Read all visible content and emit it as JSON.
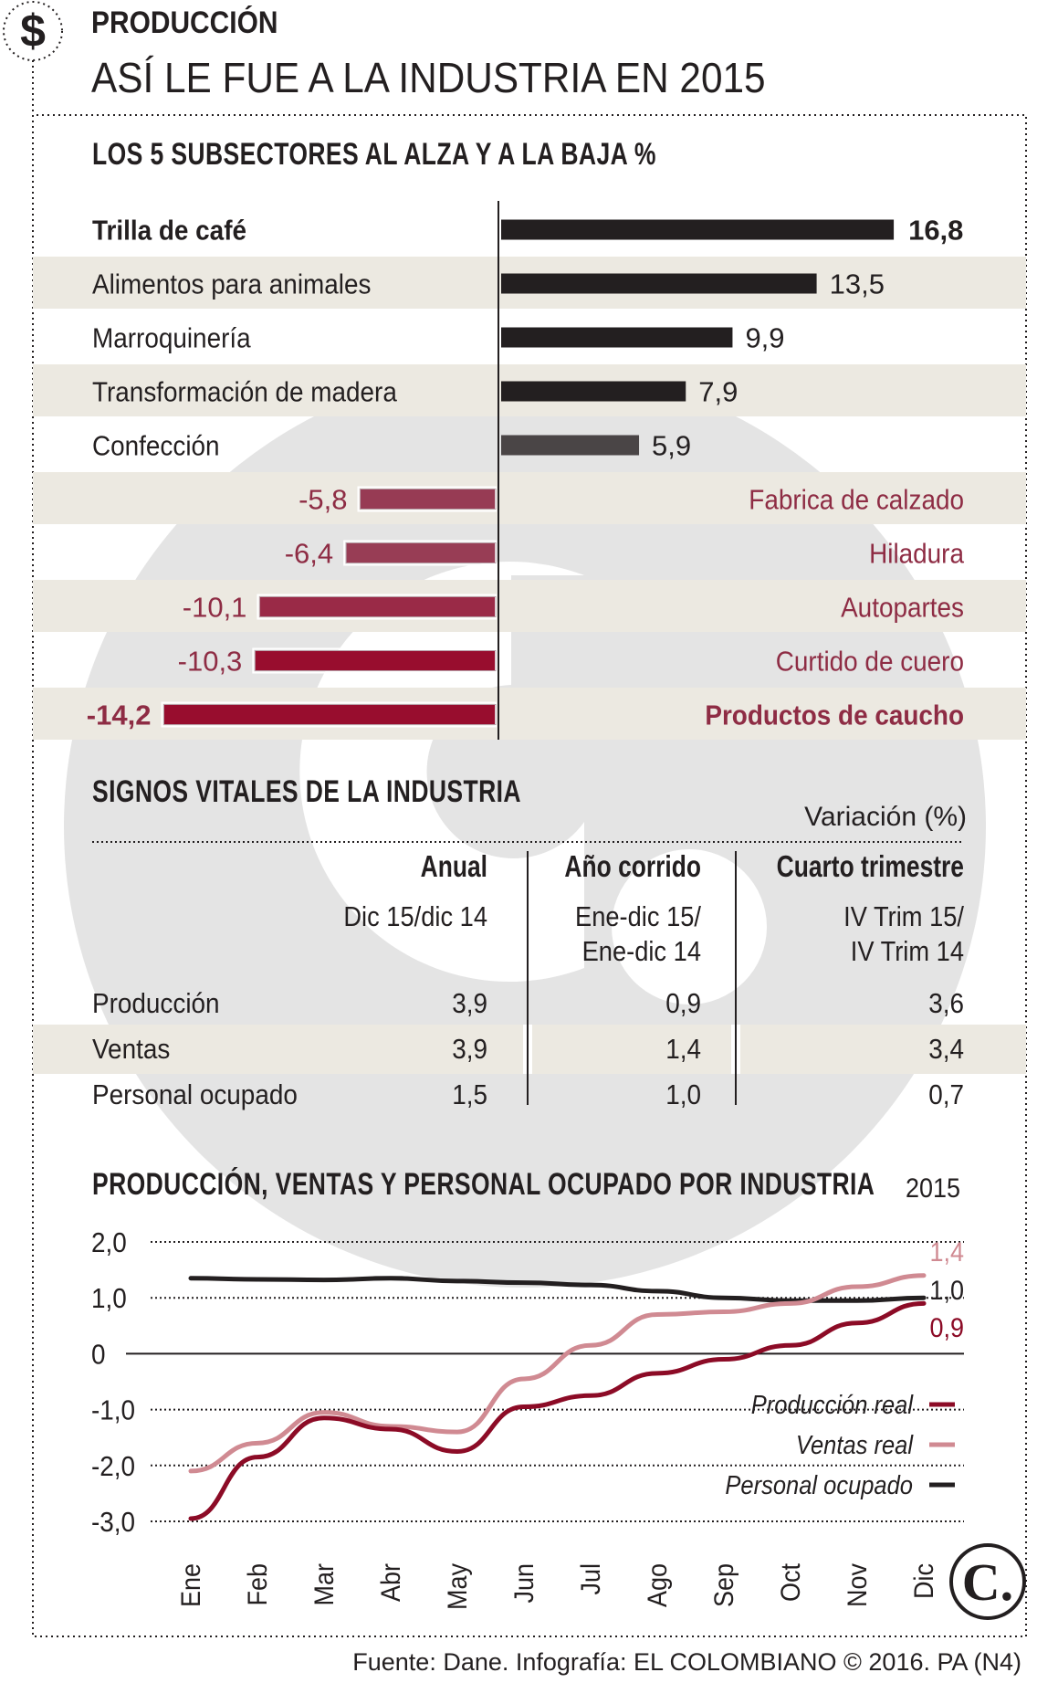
{
  "header": {
    "kicker": "PRODUCCIÓN",
    "title": "ASÍ LE FUE A LA INDUSTRIA EN 2015",
    "icon": "dollar-icon"
  },
  "subsectors": {
    "title": "LOS 5 SUBSECTORES AL ALZA Y A LA BAJA %",
    "items": [
      {
        "label": "Trilla de café",
        "value": 16.8,
        "display": "16,8",
        "bold": true
      },
      {
        "label": "Alimentos para animales",
        "value": 13.5,
        "display": "13,5"
      },
      {
        "label": "Marroquinería",
        "value": 9.9,
        "display": "9,9"
      },
      {
        "label": "Transformación de madera",
        "value": 7.9,
        "display": "7,9"
      },
      {
        "label": "Confección",
        "value": 5.9,
        "display": "5,9"
      },
      {
        "label": "Fabrica de calzado",
        "value": -5.8,
        "display": "-5,8"
      },
      {
        "label": "Hiladura",
        "value": -6.4,
        "display": "-6,4"
      },
      {
        "label": "Autopartes",
        "value": -10.1,
        "display": "-10,1"
      },
      {
        "label": "Curtido de cuero",
        "value": -10.3,
        "display": "-10,3"
      },
      {
        "label": "Productos de caucho",
        "value": -14.2,
        "display": "-14,2",
        "bold": true
      }
    ]
  },
  "vitals": {
    "title": "SIGNOS VITALES DE LA INDUSTRIA",
    "variation_label": "Variación (%)",
    "columns": [
      {
        "title": "Anual",
        "sub1": "Dic 15/dic 14",
        "sub2": ""
      },
      {
        "title": "Año corrido",
        "sub1": "Ene-dic 15/",
        "sub2": "Ene-dic 14"
      },
      {
        "title": "Cuarto trimestre",
        "sub1": "IV Trim 15/",
        "sub2": "IV Trim 14"
      }
    ],
    "rows": [
      {
        "label": "Producción",
        "values": [
          "3,9",
          "0,9",
          "3,6"
        ]
      },
      {
        "label": "Ventas",
        "values": [
          "3,9",
          "1,4",
          "3,4"
        ]
      },
      {
        "label": "Personal ocupado",
        "values": [
          "1,5",
          "1,0",
          "0,7"
        ]
      }
    ]
  },
  "linechart": {
    "title": "PRODUCCIÓN, VENTAS Y PERSONAL OCUPADO POR INDUSTRIA",
    "title_year": "2015",
    "end_labels": [
      "1,4",
      "1,0",
      "0,9"
    ]
  },
  "source": "Fuente: Dane. Infografía: EL COLOMBIANO © 2016. PA (N4)",
  "logo_text": "C.",
  "colors": {
    "dark": "#231f20",
    "positive_bar": "#231f20",
    "confeccion_bar": "#4a4546",
    "negative_label": "#8e2c44",
    "produccion": "#8c0b26",
    "ventas": "#d08a92",
    "personal": "#231f20",
    "band": "#ece9e1"
  },
  "chart_data": [
    {
      "type": "bar",
      "title": "LOS 5 SUBSECTORES AL ALZA Y A LA BAJA %",
      "categories": [
        "Trilla de café",
        "Alimentos para animales",
        "Marroquinería",
        "Transformación de madera",
        "Confección",
        "Fabrica de calzado",
        "Hiladura",
        "Autopartes",
        "Curtido de cuero",
        "Productos de caucho"
      ],
      "values": [
        16.8,
        13.5,
        9.9,
        7.9,
        5.9,
        -5.8,
        -6.4,
        -10.1,
        -10.3,
        -14.2
      ]
    },
    {
      "type": "line",
      "title": "PRODUCCIÓN, VENTAS Y PERSONAL OCUPADO POR INDUSTRIA 2015",
      "x": [
        "Ene",
        "Feb",
        "Mar",
        "Abr",
        "May",
        "Jun",
        "Jul",
        "Ago",
        "Sep",
        "Oct",
        "Nov",
        "Dic"
      ],
      "ylim": [
        -3.0,
        2.0
      ],
      "yticks": [
        2.0,
        1.0,
        0,
        -1.0,
        -2.0,
        -3.0
      ],
      "ytick_labels": [
        "2,0",
        "1,0",
        "0",
        "-1,0",
        "-2,0",
        "-3,0"
      ],
      "legend": "bottom-right",
      "series": [
        {
          "name": "Producción real",
          "color": "#8c0b26",
          "values": [
            -2.95,
            -1.85,
            -1.15,
            -1.35,
            -1.75,
            -0.95,
            -0.75,
            -0.35,
            -0.1,
            0.15,
            0.55,
            0.9
          ]
        },
        {
          "name": "Ventas real",
          "color": "#d08a92",
          "values": [
            -2.1,
            -1.6,
            -1.05,
            -1.3,
            -1.4,
            -0.45,
            0.15,
            0.7,
            0.75,
            0.9,
            1.2,
            1.4
          ]
        },
        {
          "name": "Personal ocupado",
          "color": "#231f20",
          "values": [
            1.35,
            1.33,
            1.32,
            1.35,
            1.3,
            1.27,
            1.23,
            1.12,
            1.0,
            0.95,
            0.95,
            1.0
          ]
        }
      ]
    }
  ]
}
